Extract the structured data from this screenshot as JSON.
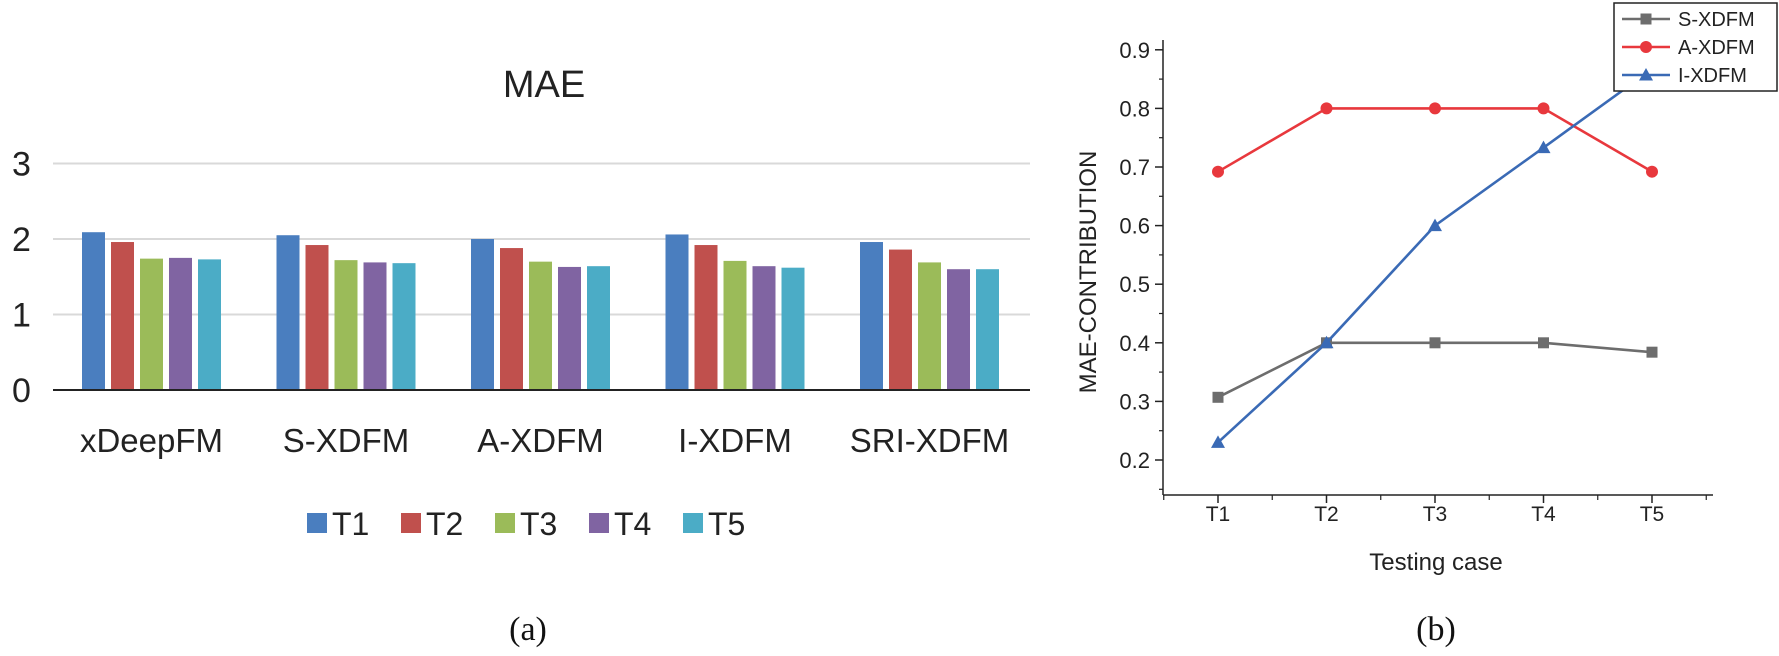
{
  "chart_data": [
    {
      "type": "bar",
      "title": "MAE",
      "categories": [
        "xDeepFM",
        "S-XDFM",
        "A-XDFM",
        "I-XDFM",
        "SRI-XDFM"
      ],
      "yticks": [
        "0",
        "1",
        "2",
        "3"
      ],
      "ylim": [
        0,
        3
      ],
      "grid": true,
      "legend_position": "bottom",
      "series": [
        {
          "name": "T1",
          "color": "#4a7ebf",
          "values": [
            2.09,
            2.05,
            2.0,
            2.06,
            1.96
          ]
        },
        {
          "name": "T2",
          "color": "#c0504d",
          "values": [
            1.96,
            1.92,
            1.88,
            1.92,
            1.86
          ]
        },
        {
          "name": "T3",
          "color": "#9bbb59",
          "values": [
            1.74,
            1.72,
            1.7,
            1.71,
            1.69
          ]
        },
        {
          "name": "T4",
          "color": "#8064a2",
          "values": [
            1.75,
            1.69,
            1.63,
            1.64,
            1.6
          ]
        },
        {
          "name": "T5",
          "color": "#4bacc6",
          "values": [
            1.73,
            1.68,
            1.64,
            1.62,
            1.6
          ]
        }
      ],
      "caption": "(a)"
    },
    {
      "type": "line",
      "xlabel": "Testing case",
      "ylabel": "MAE-CONTRIBUTION",
      "categories": [
        "T1",
        "T2",
        "T3",
        "T4",
        "T5"
      ],
      "yticks": [
        "0.2",
        "0.3",
        "0.4",
        "0.5",
        "0.6",
        "0.7",
        "0.8",
        "0.9"
      ],
      "ylim": [
        0.2,
        0.9
      ],
      "grid": false,
      "legend_position": "top-right",
      "series": [
        {
          "name": "S-XDFM",
          "color": "#6d6d6d",
          "marker": "square",
          "values": [
            0.307,
            0.4,
            0.4,
            0.4,
            0.384
          ]
        },
        {
          "name": "A-XDFM",
          "color": "#e8383d",
          "marker": "circle",
          "values": [
            0.692,
            0.8,
            0.8,
            0.8,
            0.692
          ]
        },
        {
          "name": "I-XDFM",
          "color": "#3a6ab5",
          "marker": "triangle",
          "values": [
            0.23,
            0.4,
            0.6,
            0.733,
            0.867
          ]
        }
      ],
      "caption": "(b)"
    }
  ]
}
